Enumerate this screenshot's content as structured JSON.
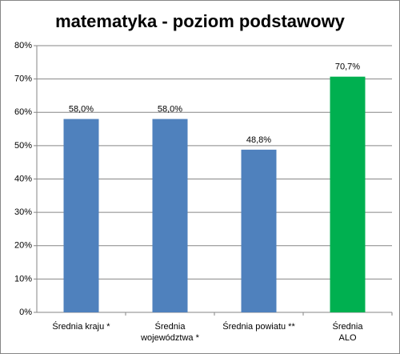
{
  "chart_data": {
    "type": "bar",
    "title": "matematyka - poziom podstawowy",
    "categories": [
      "Średnia kraju *",
      "Średnia\nwojewództwa *",
      "Średnia powiatu **",
      "Średnia\nALO"
    ],
    "values": [
      58.0,
      58.0,
      48.8,
      70.7
    ],
    "value_labels": [
      "58,0%",
      "58,0%",
      "48,8%",
      "70,7%"
    ],
    "colors": [
      "#4f81bd",
      "#4f81bd",
      "#4f81bd",
      "#00b050"
    ],
    "ylim": [
      0,
      80
    ],
    "yticks": [
      {
        "value": 0,
        "label": "0%"
      },
      {
        "value": 10,
        "label": "10%"
      },
      {
        "value": 20,
        "label": "20%"
      },
      {
        "value": 30,
        "label": "30%"
      },
      {
        "value": 40,
        "label": "40%"
      },
      {
        "value": 50,
        "label": "50%"
      },
      {
        "value": 60,
        "label": "60%"
      },
      {
        "value": 70,
        "label": "70%"
      },
      {
        "value": 80,
        "label": "80%"
      }
    ],
    "grid": true
  }
}
